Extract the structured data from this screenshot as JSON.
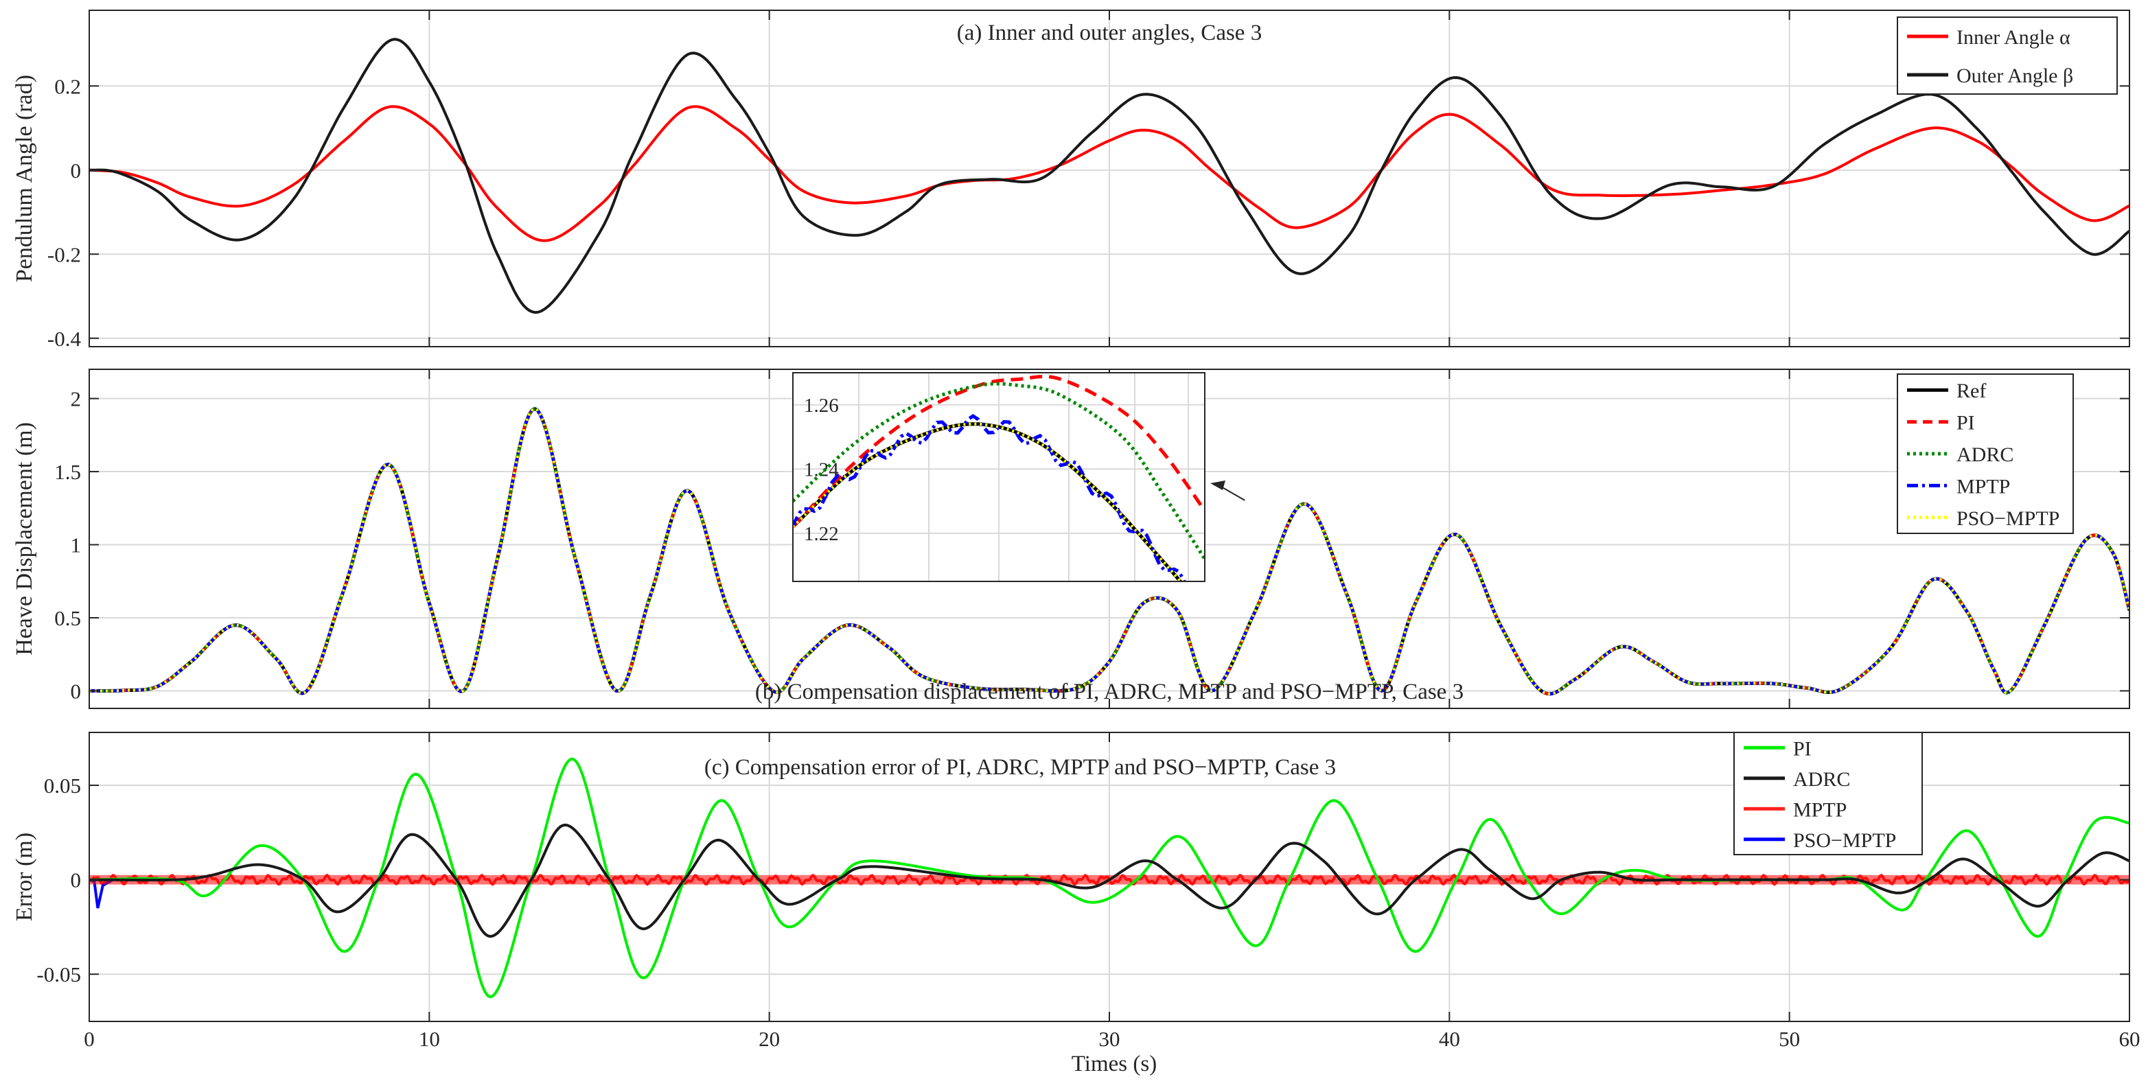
{
  "x_axis_label": "Times (s)",
  "chart_data": [
    {
      "id": "a",
      "type": "line",
      "title": "(a) Inner and outer angles, Case 3",
      "xlabel": "",
      "ylabel": "Pendulum Angle (rad)",
      "xlim": [
        0,
        60
      ],
      "ylim": [
        -0.42,
        0.38
      ],
      "yticks": [
        -0.4,
        -0.2,
        0,
        0.2
      ],
      "ytick_labels": [
        "-0.4",
        "-0.2",
        "0",
        "0.2"
      ],
      "xticks": [
        0,
        10,
        20,
        30,
        40,
        50,
        60
      ],
      "show_xtick_labels": false,
      "grid": true,
      "legend_position": "top-right",
      "series": [
        {
          "name": "Inner Angle α",
          "color": "#ff0000",
          "x": [
            0,
            1,
            2,
            3,
            4.5,
            6,
            7.5,
            8.8,
            10,
            11,
            12,
            13.4,
            15,
            16,
            17.6,
            19,
            20,
            21,
            22.4,
            24,
            25,
            26,
            27.2,
            28.5,
            30,
            31,
            32,
            33,
            34.4,
            35.5,
            37,
            38,
            39,
            40.1,
            41.5,
            43,
            44.5,
            46.5,
            48,
            49.5,
            51,
            52.5,
            54.2,
            55.5,
            56.5,
            57.5,
            58.9,
            60
          ],
          "y": [
            0,
            -0.006,
            -0.03,
            -0.065,
            -0.085,
            -0.035,
            0.07,
            0.15,
            0.11,
            0.02,
            -0.09,
            -0.168,
            -0.085,
            0.01,
            0.148,
            0.1,
            0.025,
            -0.05,
            -0.078,
            -0.062,
            -0.036,
            -0.025,
            -0.02,
            0.01,
            0.07,
            0.095,
            0.07,
            0,
            -0.09,
            -0.137,
            -0.09,
            0,
            0.09,
            0.132,
            0.06,
            -0.045,
            -0.06,
            -0.058,
            -0.048,
            -0.035,
            -0.01,
            0.05,
            0.1,
            0.07,
            0.01,
            -0.06,
            -0.12,
            -0.085
          ]
        },
        {
          "name": "Outer Angle β",
          "color": "#1a1a1a",
          "x": [
            0,
            0.8,
            2,
            3,
            4.5,
            6,
            7.5,
            8.9,
            10,
            11,
            12,
            13.2,
            15,
            16,
            17.6,
            19,
            20,
            21,
            22.6,
            24,
            25,
            26.5,
            28,
            29.5,
            31,
            32.5,
            34,
            35.5,
            37,
            38,
            39,
            40.2,
            41.5,
            43,
            44.5,
            46.5,
            48,
            49.5,
            51,
            52.5,
            54.2,
            55.5,
            56.5,
            57.5,
            58.9,
            60
          ],
          "y": [
            0,
            -0.005,
            -0.05,
            -0.12,
            -0.165,
            -0.07,
            0.15,
            0.31,
            0.21,
            0.03,
            -0.2,
            -0.338,
            -0.15,
            0.04,
            0.275,
            0.17,
            0.04,
            -0.11,
            -0.155,
            -0.1,
            -0.035,
            -0.022,
            -0.02,
            0.09,
            0.18,
            0.11,
            -0.09,
            -0.245,
            -0.16,
            0,
            0.14,
            0.22,
            0.13,
            -0.06,
            -0.115,
            -0.035,
            -0.04,
            -0.04,
            0.06,
            0.13,
            0.18,
            0.1,
            0,
            -0.1,
            -0.2,
            -0.145
          ]
        }
      ]
    },
    {
      "id": "b",
      "type": "line",
      "title": "(b) Compensation displacement of PI, ADRC, MPTP and PSO−MPTP, Case 3",
      "xlabel": "",
      "ylabel": "Heave Displacement (m)",
      "xlim": [
        0,
        60
      ],
      "ylim": [
        -0.12,
        2.2
      ],
      "yticks": [
        0,
        0.5,
        1,
        1.5,
        2
      ],
      "ytick_labels": [
        "0",
        "0.5",
        "1",
        "1.5",
        "2"
      ],
      "xticks": [
        0,
        10,
        20,
        30,
        40,
        50,
        60
      ],
      "show_xtick_labels": false,
      "grid": true,
      "legend_position": "top-right",
      "series": [
        {
          "name": "Ref",
          "color": "#000000",
          "dash": "solid"
        },
        {
          "name": "PI",
          "color": "#ff0000",
          "dash": "dashed"
        },
        {
          "name": "ADRC",
          "color": "#008800",
          "dash": "dotted"
        },
        {
          "name": "MPTP",
          "color": "#0000ff",
          "dash": "dashdot"
        },
        {
          "name": "PSO−MPTP",
          "color": "#ffff00",
          "dash": "dotted"
        }
      ],
      "x": [
        0,
        1,
        2,
        3,
        4.3,
        5.5,
        6.4,
        7.5,
        8.8,
        10,
        11,
        12,
        13.1,
        14.3,
        15.5,
        16.5,
        17.6,
        18.8,
        20.1,
        21,
        22.3,
        23.5,
        24.5,
        26,
        27.5,
        29,
        30,
        31,
        32,
        33,
        34.3,
        35.7,
        37,
        38,
        39,
        40.2,
        41.5,
        42.7,
        43.7,
        45,
        46,
        47,
        48,
        49.5,
        50.5,
        51.5,
        53,
        54.2,
        55.2,
        56,
        56.5,
        57.5,
        58.7,
        59.5,
        60
      ],
      "ref": [
        0,
        0.003,
        0.03,
        0.2,
        0.45,
        0.22,
        0,
        0.7,
        1.55,
        0.6,
        0,
        0.9,
        1.93,
        0.9,
        0,
        0.65,
        1.37,
        0.55,
        0,
        0.22,
        0.45,
        0.3,
        0.1,
        0.02,
        0.01,
        0.015,
        0.2,
        0.6,
        0.55,
        0,
        0.55,
        1.28,
        0.65,
        0,
        0.6,
        1.07,
        0.45,
        0,
        0.08,
        0.3,
        0.2,
        0.06,
        0.05,
        0.05,
        0.02,
        0.01,
        0.3,
        0.76,
        0.55,
        0.15,
        0,
        0.45,
        1.03,
        0.95,
        0.55
      ],
      "inset": {
        "xlim": [
          0,
          1
        ],
        "ylim": [
          1.205,
          1.27
        ],
        "yticks": [
          1.22,
          1.24,
          1.26
        ],
        "ytick_labels": [
          "1.22",
          "1.24",
          "1.26"
        ],
        "xgrid": [
          0.16,
          0.33,
          0.5,
          0.67,
          0.83,
          0.96
        ],
        "ref": {
          "x": [
            0,
            0.15,
            0.3,
            0.45,
            0.6,
            0.75,
            0.88,
            1
          ],
          "y": [
            1.222,
            1.24,
            1.25,
            1.254,
            1.248,
            1.232,
            1.214,
            1.196
          ]
        },
        "pi": {
          "x": [
            0,
            0.15,
            0.3,
            0.45,
            0.55,
            0.65,
            0.8,
            0.9,
            1
          ],
          "y": [
            1.222,
            1.242,
            1.257,
            1.266,
            1.268,
            1.268,
            1.258,
            1.245,
            1.227
          ]
        },
        "adrc": {
          "x": [
            0,
            0.15,
            0.3,
            0.45,
            0.55,
            0.65,
            0.8,
            0.9,
            1
          ],
          "y": [
            1.23,
            1.248,
            1.26,
            1.266,
            1.266,
            1.263,
            1.25,
            1.232,
            1.212
          ]
        },
        "mptp_amplitude": 0.0025,
        "mptp_cycles": 12,
        "annotation_target": {
          "x": 35.7,
          "y": 1.28
        }
      }
    },
    {
      "id": "c",
      "type": "line",
      "title": "(c) Compensation error of PI, ADRC, MPTP and PSO−MPTP, Case 3",
      "xlabel": "Times (s)",
      "ylabel": "Error (m)",
      "xlim": [
        0,
        60
      ],
      "ylim": [
        -0.075,
        0.078
      ],
      "yticks": [
        -0.05,
        0,
        0.05
      ],
      "ytick_labels": [
        "-0.05",
        "0",
        "0.05"
      ],
      "xticks": [
        0,
        10,
        20,
        30,
        40,
        50,
        60
      ],
      "xtick_labels": [
        "0",
        "10",
        "20",
        "30",
        "40",
        "50",
        "60"
      ],
      "grid": true,
      "legend_position": "top-right",
      "series": [
        {
          "name": "PI",
          "color": "#00ee00",
          "x": [
            0,
            2.5,
            3.5,
            5,
            6.3,
            7.5,
            8.5,
            9.6,
            10.8,
            11.8,
            13,
            14.2,
            15.3,
            16.3,
            17.5,
            18.6,
            19.7,
            20.6,
            22,
            23,
            26,
            28,
            29.5,
            30.8,
            32,
            33,
            34.3,
            35.3,
            36.6,
            37.9,
            39,
            40.2,
            41.2,
            42.3,
            43.3,
            44.5,
            45.5,
            46.8,
            49,
            51,
            52,
            53.3,
            54,
            55.2,
            56.2,
            57.3,
            58.1,
            59,
            60
          ],
          "y": [
            0,
            0,
            -0.008,
            0.018,
            0,
            -0.038,
            0,
            0.056,
            0,
            -0.062,
            0,
            0.064,
            0,
            -0.052,
            0,
            0.042,
            0,
            -0.025,
            0,
            0.01,
            0.002,
            0,
            -0.012,
            0,
            0.023,
            0,
            -0.035,
            0,
            0.042,
            0,
            -0.038,
            0,
            0.032,
            0,
            -0.018,
            0,
            0.005,
            0,
            0,
            0,
            0,
            -0.016,
            0,
            0.026,
            0,
            -0.03,
            0,
            0.031,
            0.03
          ]
        },
        {
          "name": "ADRC",
          "color": "#1a1a1a",
          "x": [
            0,
            2.5,
            3.5,
            5,
            6.3,
            7.3,
            8.5,
            9.5,
            10.8,
            11.8,
            13,
            14,
            15.3,
            16.3,
            17.5,
            18.5,
            19.7,
            20.6,
            22,
            23,
            26,
            28,
            29.5,
            31,
            32,
            33.3,
            34.3,
            35.3,
            36.3,
            37.8,
            39,
            40.3,
            41.2,
            42.4,
            43.3,
            44.4,
            45.5,
            46.8,
            49,
            51,
            52,
            53.2,
            54.1,
            55.1,
            56.1,
            57.3,
            58.2,
            59.2,
            60
          ],
          "y": [
            0,
            0,
            0.002,
            0.008,
            0,
            -0.017,
            0,
            0.024,
            0,
            -0.03,
            0,
            0.029,
            0,
            -0.026,
            0,
            0.021,
            0,
            -0.013,
            0,
            0.007,
            0.001,
            0,
            -0.004,
            0.01,
            0,
            -0.015,
            0,
            0.019,
            0.01,
            -0.018,
            0,
            0.016,
            0.005,
            -0.01,
            0,
            0.004,
            0,
            0,
            0,
            0,
            0,
            -0.007,
            0,
            0.011,
            0,
            -0.014,
            0,
            0.014,
            0.01
          ]
        },
        {
          "name": "MPTP",
          "color": "#ff2020"
        },
        {
          "name": "PSO−MPTP",
          "color": "#0000ff"
        }
      ]
    }
  ]
}
